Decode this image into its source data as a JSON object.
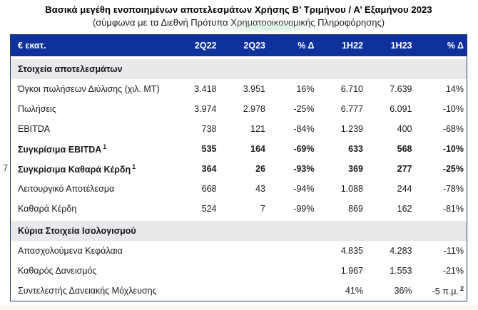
{
  "page": {
    "title": "Βασικά μεγέθη ενοποιημένων αποτελεσμάτων Χρήσης Β’ Τριμήνου / Α’ Εξαμήνου 2023",
    "subtitle": "(σύμφωνα με τα Διεθνή Πρότυπα Χρηματοοικονομικής Πληροφόρησης)",
    "page_number": "7"
  },
  "colors": {
    "header_bg": "#0e319c",
    "header_text": "#ffffff",
    "section_bg": "#e9e9ec",
    "section_text": "#14141f",
    "table_border": "#233a70",
    "body_text": "#1a1a1a",
    "pagenum_color": "#31418f"
  },
  "table": {
    "unit_label": "€ εκατ.",
    "columns": [
      "2Q22",
      "2Q23",
      "% Δ",
      "1H22",
      "1H23",
      "% Δ"
    ],
    "sections": [
      {
        "title": "Στοιχεία αποτελεσμάτων",
        "rows": [
          {
            "label": "Όγκοι πωλήσεων Διύλισης (χιλ. ΜΤ)",
            "cells": [
              "3.418",
              "3.951",
              "16%",
              "6.710",
              "7.639",
              "14%"
            ]
          },
          {
            "label": "Πωλήσεις",
            "cells": [
              "3.974",
              "2.978",
              "-25%",
              "6.777",
              "6.091",
              "-10%"
            ]
          },
          {
            "label": "EBITDA",
            "cells": [
              "738",
              "121",
              "-84%",
              "1.239",
              "400",
              "-68%"
            ]
          },
          {
            "label": "Συγκρίσιμα EBITDA",
            "label_sup": "1",
            "cells": [
              "535",
              "164",
              "-69%",
              "633",
              "568",
              "-10%"
            ]
          },
          {
            "label": "Συγκρίσιμα Καθαρά Κέρδη",
            "label_sup": "1",
            "cells": [
              "364",
              "26",
              "-93%",
              "369",
              "277",
              "-25%"
            ]
          },
          {
            "label": "Λειτουργικό Αποτέλεσμα",
            "cells": [
              "668",
              "43",
              "-94%",
              "1.088",
              "244",
              "-78%"
            ]
          },
          {
            "label": "Καθαρά Κέρδη",
            "cells": [
              "524",
              "7",
              "-99%",
              "869",
              "162",
              "-81%"
            ]
          }
        ]
      },
      {
        "title": "Κύρια Στοιχεία Ισολογισμού",
        "rows": [
          {
            "label": "Απασχολούμενα Κεφάλαια",
            "cells": [
              "",
              "",
              "",
              "4.835",
              "4.283",
              "-11%"
            ]
          },
          {
            "label": "Καθαρός Δανεισμός",
            "cells": [
              "",
              "",
              "",
              "1.967",
              "1.553",
              "-21%"
            ]
          },
          {
            "label": "Συντελεστής Δανειακής Μόχλευσης",
            "cells": [
              "",
              "",
              "",
              "41%",
              "36%",
              "-5 π.μ."
            ],
            "last_cell_sup": "2"
          }
        ]
      }
    ]
  }
}
